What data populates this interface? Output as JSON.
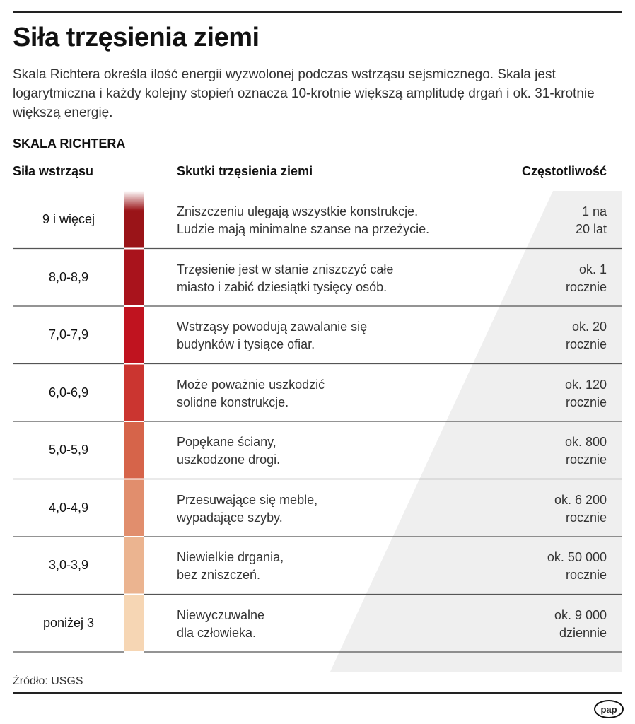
{
  "title": "Siła trzęsienia ziemi",
  "lead": "Skala Richtera określa ilość energii wyzwolonej podczas wstrząsu sejsmicznego. Skala jest logarytmiczna i każdy kolejny stopień oznacza 10-krotnie większą amplitudę drgań i ok. 31-krotnie większą energię.",
  "subtitle": "SKALA RICHTERA",
  "headers": {
    "magnitude": "Siła wstrząsu",
    "effects": "Skutki trzęsienia ziemi",
    "frequency": "Częstotliwość"
  },
  "rows": [
    {
      "magnitude": "9 i więcej",
      "effects": "Zniszczeniu ulegają wszystkie konstrukcje.\nLudzie mają minimalne szanse na przeżycie.",
      "frequency": "1 na\n20 lat",
      "color": "#9a1418"
    },
    {
      "magnitude": "8,0-8,9",
      "effects": "Trzęsienie jest w stanie zniszczyć całe\nmiasto i zabić dziesiątki tysięcy osób.",
      "frequency": "ok. 1\nrocznie",
      "color": "#a9131c"
    },
    {
      "magnitude": "7,0-7,9",
      "effects": "Wstrząsy powodują zawalanie się\nbudynków i tysiące ofiar.",
      "frequency": "ok. 20\nrocznie",
      "color": "#c0131f"
    },
    {
      "magnitude": "6,0-6,9",
      "effects": "Może poważnie uszkodzić\nsolidne konstrukcje.",
      "frequency": "ok. 120\nrocznie",
      "color": "#cb3530"
    },
    {
      "magnitude": "5,0-5,9",
      "effects": "Popękane ściany,\nuszkodzone drogi.",
      "frequency": "ok. 800\nrocznie",
      "color": "#d6644a"
    },
    {
      "magnitude": "4,0-4,9",
      "effects": "Przesuwające się meble,\nwypadające szyby.",
      "frequency": "ok. 6 200\nrocznie",
      "color": "#e18e6d"
    },
    {
      "magnitude": "3,0-3,9",
      "effects": "Niewielkie drgania,\nbez zniszczeń.",
      "frequency": "ok. 50 000\nrocznie",
      "color": "#ebb490"
    },
    {
      "magnitude": "poniżej 3",
      "effects": "Niewyczuwalne\ndla człowieka.",
      "frequency": "ok. 9 000\ndziennie",
      "color": "#f6d6b4"
    }
  ],
  "source": "Źródło: USGS",
  "logo": "pap"
}
